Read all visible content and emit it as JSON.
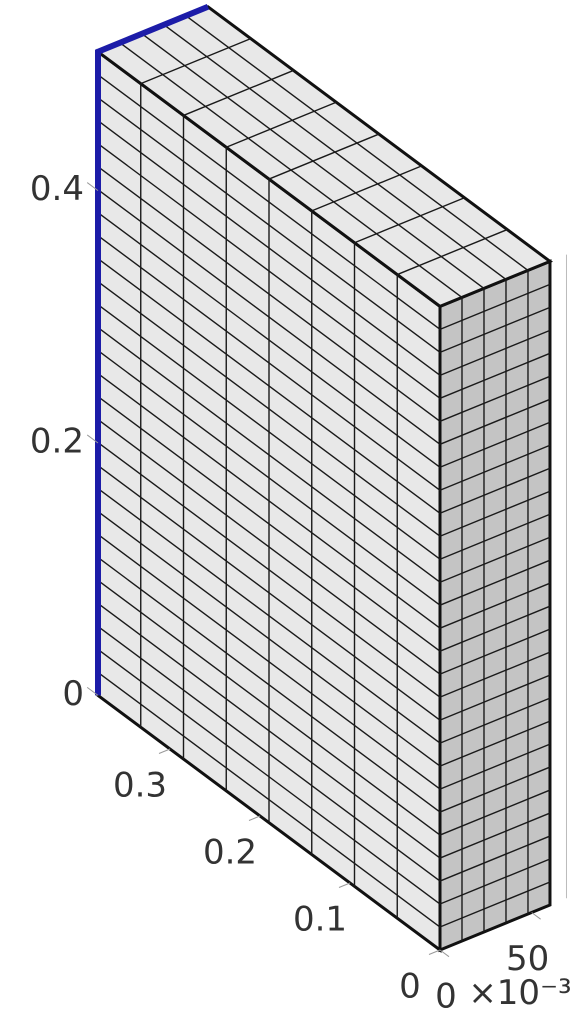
{
  "chart_data": {
    "type": "mesh3d",
    "xlim": [
      0,
      0.38
    ],
    "ylim": [
      0,
      0.06
    ],
    "zlim": [
      0,
      0.51
    ],
    "xticks": [
      0,
      0.1,
      0.2,
      0.3
    ],
    "yticks": [
      0,
      {
        "value": 0.05,
        "label": "50"
      }
    ],
    "y_multiplier": "×10⁻³",
    "zticks": [
      0,
      0.2,
      0.4
    ],
    "mesh_color": "#e8e8e8",
    "side_color": "#c4c4c4",
    "highlight_color": "#1c1ca8"
  }
}
